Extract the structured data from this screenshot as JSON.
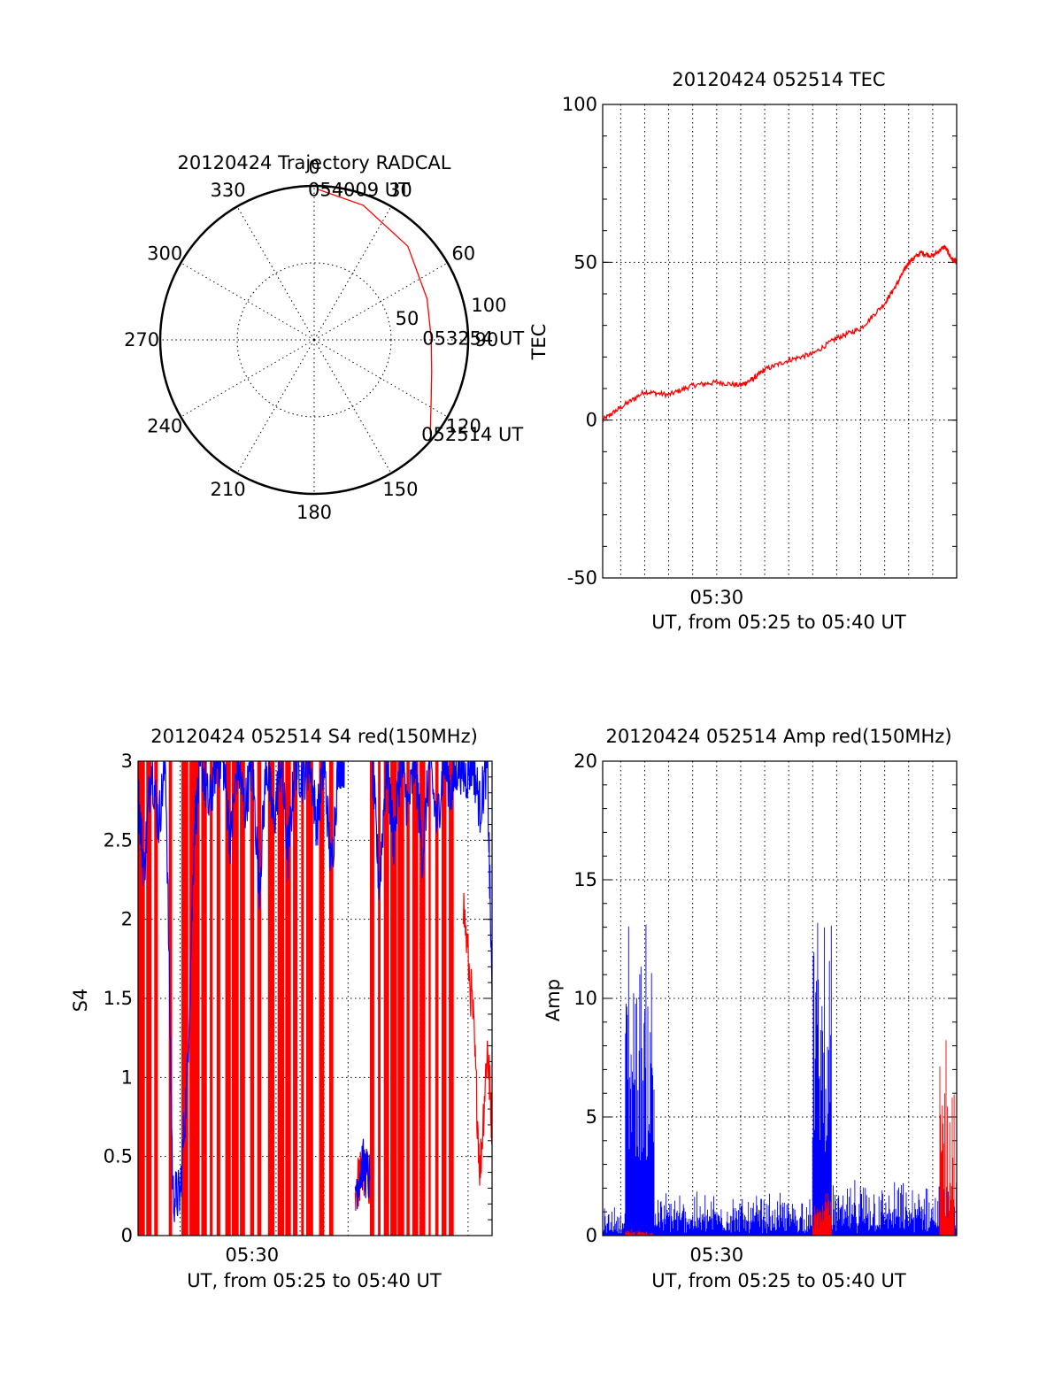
{
  "colors": {
    "red": "#ff0000",
    "blue": "#0000ff",
    "black": "#000000"
  },
  "chart_data": [
    {
      "id": "trajectory",
      "type": "polar",
      "title": "20120424 Trajectory RADCAL",
      "angle_labels": [
        "0",
        "30",
        "60",
        "90",
        "120",
        "150",
        "180",
        "210",
        "240",
        "270",
        "300",
        "330"
      ],
      "angles_deg": [
        0,
        30,
        60,
        90,
        120,
        150,
        180,
        210,
        240,
        270,
        300,
        330
      ],
      "radius_max": 100,
      "ring_values": [
        50,
        100
      ],
      "ring_labels": [
        "50",
        "100"
      ],
      "track": {
        "color": "red",
        "points": [
          [
            1,
            98
          ],
          [
            20,
            93
          ],
          [
            45,
            86
          ],
          [
            70,
            78
          ],
          [
            89,
            76
          ],
          [
            105,
            79
          ],
          [
            118,
            86
          ],
          [
            129,
            97
          ]
        ]
      },
      "time_labels": [
        {
          "text": "054009 UT",
          "az": 1,
          "r": 98
        },
        {
          "text": "053254 UT",
          "az": 89,
          "r": 76
        },
        {
          "text": "052514 UT",
          "az": 129,
          "r": 97
        }
      ]
    },
    {
      "id": "tec",
      "type": "line",
      "title": "20120424 052514 TEC",
      "xlabel": "UT, from 05:25 to 05:40 UT",
      "ylabel": "TEC",
      "ylim": [
        -50,
        100
      ],
      "yticks": [
        "-50",
        "0",
        "50",
        "100"
      ],
      "xlim_min": [
        25.25,
        40
      ],
      "xtick_label": "05:30",
      "xtick_value": 30,
      "grid": true,
      "series": [
        {
          "color": "red",
          "x": [
            25.25,
            26,
            27,
            28,
            29,
            30,
            31,
            31.5,
            32,
            33,
            34,
            35,
            36,
            37,
            37.5,
            38,
            38.5,
            39,
            39.5,
            39.8,
            40
          ],
          "y": [
            0,
            4,
            9,
            8,
            11,
            12,
            11,
            13,
            16,
            19,
            21,
            26,
            29,
            37,
            43,
            50,
            53,
            52,
            55,
            51,
            50
          ]
        }
      ]
    },
    {
      "id": "s4",
      "type": "line",
      "title": "20120424 052514 S4 red(150MHz)",
      "xlabel": "UT, from 05:25 to 05:40 UT",
      "ylabel": "S4",
      "ylim": [
        0,
        3
      ],
      "yticks": [
        "0",
        "0.5",
        "1",
        "1.5",
        "2",
        "2.5",
        "3"
      ],
      "xlim_min": [
        25.25,
        40
      ],
      "xtick_label": "05:30",
      "xtick_value": 30,
      "grid": true,
      "series": [
        {
          "color": "red",
          "spikes_x": [
            25.4,
            25.7,
            26.0,
            26.6,
            27.2,
            27.5,
            27.7,
            28.0,
            28.3,
            28.6,
            29.0,
            29.3,
            29.6,
            30.0,
            30.3,
            30.8,
            31.2,
            31.5,
            31.8,
            32.1,
            32.4,
            32.9,
            33.3,
            35.0,
            35.3,
            35.6,
            35.9,
            36.2,
            36.5,
            36.8,
            37.1,
            37.4,
            37.7,
            38.0,
            38.3
          ],
          "segments": [
            {
              "x": [
                34.3,
                34.6,
                34.9
              ],
              "y": [
                0.3,
                0.4,
                0.35
              ]
            },
            {
              "x": [
                38.8,
                39.2,
                39.5,
                39.8,
                40
              ],
              "y": [
                2.1,
                1.4,
                0.4,
                1.2,
                0.7
              ]
            }
          ]
        },
        {
          "color": "blue",
          "segments": [
            {
              "x": [
                25.25,
                25.5,
                25.8,
                26.1,
                26.4,
                26.7,
                27.0,
                27.3,
                27.6,
                27.9,
                28.2,
                28.5,
                28.8,
                29.1,
                29.4,
                29.7,
                30.0,
                30.3,
                30.6,
                30.9,
                31.2,
                31.5,
                31.8,
                32.1,
                32.4,
                32.7,
                33.0,
                33.3,
                33.6,
                33.9
              ],
              "y": [
                2.8,
                2.3,
                3.0,
                2.6,
                3.0,
                0.25,
                0.25,
                1.0,
                2.6,
                3.0,
                2.7,
                3.0,
                3.0,
                2.5,
                3.0,
                2.7,
                3.0,
                2.2,
                3.0,
                2.6,
                3.0,
                2.4,
                3.0,
                2.9,
                3.0,
                2.6,
                3.0,
                2.3,
                3.0,
                3.0
              ]
            },
            {
              "x": [
                34.3,
                34.6,
                34.9
              ],
              "y": [
                0.3,
                0.45,
                0.35
              ]
            },
            {
              "x": [
                35.0,
                35.3,
                35.6,
                35.9,
                36.2,
                36.5,
                36.8,
                37.1,
                37.4,
                37.7,
                38.0,
                38.3,
                38.6,
                38.9,
                39.2,
                39.5,
                39.8,
                40
              ],
              "y": [
                3.0,
                2.2,
                3.0,
                2.5,
                3.0,
                2.7,
                3.0,
                2.4,
                3.0,
                2.6,
                3.0,
                2.8,
                3.0,
                2.9,
                3.0,
                2.7,
                3.0,
                1.5
              ]
            }
          ]
        }
      ]
    },
    {
      "id": "amp",
      "type": "line",
      "title": "20120424 052514 Amp red(150MHz)",
      "xlabel": "UT, from 05:25 to 05:40 UT",
      "ylabel": "Amp",
      "ylim": [
        0,
        20
      ],
      "yticks": [
        "0",
        "5",
        "10",
        "15",
        "20"
      ],
      "xlim_min": [
        25.25,
        40
      ],
      "xtick_label": "05:30",
      "xtick_value": 30,
      "grid": true,
      "series": [
        {
          "color": "blue",
          "bursts": [
            {
              "x0": 25.25,
              "x1": 26.2,
              "low": 0.1,
              "high": 1.4
            },
            {
              "x0": 26.2,
              "x1": 27.4,
              "low": 3.0,
              "high": 15.4
            },
            {
              "x0": 27.4,
              "x1": 34.0,
              "low": 0.1,
              "high": 2.0
            },
            {
              "x0": 34.0,
              "x1": 34.8,
              "low": 3.5,
              "high": 15.8
            },
            {
              "x0": 34.8,
              "x1": 40.0,
              "low": 0.1,
              "high": 2.5
            }
          ]
        },
        {
          "color": "red",
          "bursts": [
            {
              "x0": 26.2,
              "x1": 27.4,
              "low": 0.0,
              "high": 0.3
            },
            {
              "x0": 34.0,
              "x1": 34.8,
              "low": 0.3,
              "high": 2.5
            },
            {
              "x0": 39.3,
              "x1": 39.9,
              "low": 0.5,
              "high": 10.2
            }
          ]
        }
      ]
    }
  ]
}
